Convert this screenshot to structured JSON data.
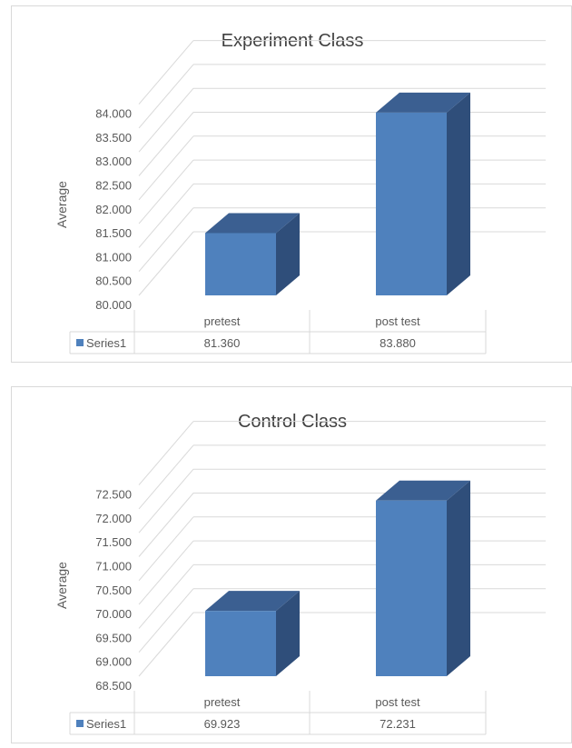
{
  "colors": {
    "bar_front": "#4f81bd",
    "bar_top": "#3b5f91",
    "bar_side": "#2f4e7a",
    "grid": "#d9d9d9",
    "text": "#595959",
    "title": "#404040"
  },
  "chart_data": [
    {
      "type": "bar",
      "title": "Experiment Class",
      "ylabel": "Average",
      "categories": [
        "pretest",
        "post test"
      ],
      "series": [
        {
          "name": "Series1",
          "values": [
            81.36,
            83.88
          ]
        }
      ],
      "value_labels": [
        "81.360",
        "83.880"
      ],
      "yticks": [
        "80.000",
        "80.500",
        "81.000",
        "81.500",
        "82.000",
        "82.500",
        "83.000",
        "83.500",
        "84.000"
      ],
      "ylim": [
        80.0,
        84.0
      ],
      "grid": true,
      "legend": "data-table",
      "style": "3d-column"
    },
    {
      "type": "bar",
      "title": "Control Class",
      "ylabel": "Average",
      "categories": [
        "pretest",
        "post test"
      ],
      "series": [
        {
          "name": "Series1",
          "values": [
            69.923,
            72.231
          ]
        }
      ],
      "value_labels": [
        "69.923",
        "72.231"
      ],
      "yticks": [
        "68.500",
        "69.000",
        "69.500",
        "70.000",
        "70.500",
        "71.000",
        "71.500",
        "72.000",
        "72.500"
      ],
      "ylim": [
        68.5,
        72.5
      ],
      "grid": true,
      "legend": "data-table",
      "style": "3d-column"
    }
  ]
}
